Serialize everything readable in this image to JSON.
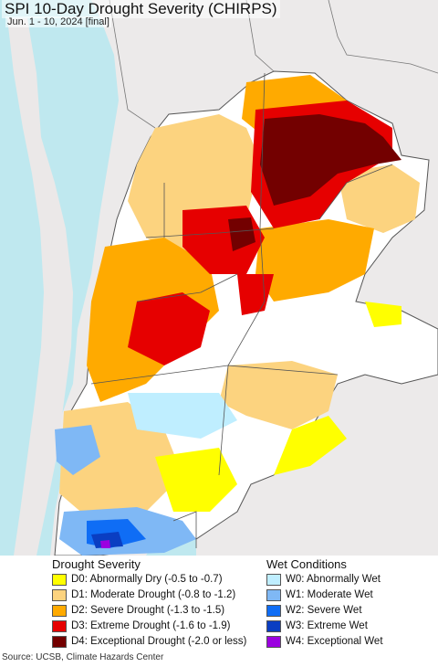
{
  "title": "SPI 10-Day Drought Severity (CHIRPS)",
  "subtitle": "Jun. 1 - 10, 2024 [final]",
  "colors": {
    "ocean": "#bfe8ef",
    "land_outside": "#eceaea",
    "no_drought": "#ffffff",
    "boundary": "#555555"
  },
  "legend": {
    "drought_heading": "Drought Severity",
    "wet_heading": "Wet Conditions",
    "drought_items": [
      {
        "label": "D0: Abnormally Dry (-0.5 to -0.7)",
        "color": "#ffff00"
      },
      {
        "label": "D1: Moderate Drought (-0.8 to -1.2)",
        "color": "#fcd37f"
      },
      {
        "label": "D2: Severe Drought (-1.3 to -1.5)",
        "color": "#ffaa00"
      },
      {
        "label": "D3: Extreme Drought (-1.6 to -1.9)",
        "color": "#e60000"
      },
      {
        "label": "D4: Exceptional Drought (-2.0 or less)",
        "color": "#730000"
      }
    ],
    "wet_items": [
      {
        "label": "W0: Abnormally Wet",
        "color": "#bfeeff"
      },
      {
        "label": "W1: Moderate Wet",
        "color": "#7fb8f5"
      },
      {
        "label": "W2: Severe Wet",
        "color": "#0f6df5"
      },
      {
        "label": "W3: Extreme Wet",
        "color": "#0a3ec2"
      },
      {
        "label": "W4: Exceptional Wet",
        "color": "#9b00e0"
      }
    ]
  },
  "source": "Source: UCSB, Climate Hazards Center"
}
